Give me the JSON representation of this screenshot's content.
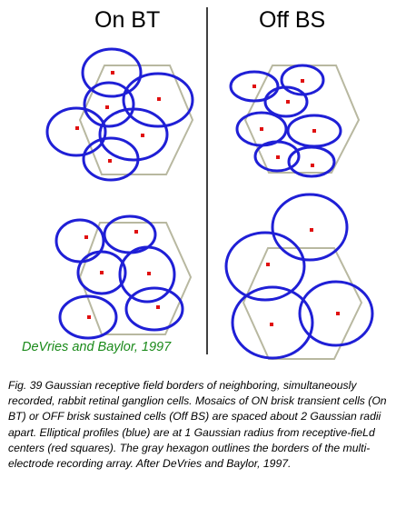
{
  "titles": {
    "left": "On BT",
    "right": "Off BS"
  },
  "credit": "DeVries and Baylor, 1997",
  "caption": "Fig. 39 Gaussian receptive field borders of neighboring, simultaneously recorded, rabbit retinal ganglion cells. Mosaics of ON brisk transient cells (On BT) or OFF brisk sustained cells (Off BS) are spaced about 2 Gaussian radii apart. Elliptical profiles (blue) are at 1 Gaussian radius from receptive-fieLd centers (red squares). The gray hexagon outlines the borders of the multi-electrode recording array. After DeVries and Baylor, 1997.",
  "colors": {
    "ellipse": "#1f1fd6",
    "center": "#e01010",
    "hexagon": "#b8b8a0",
    "credit": "#1a8a1a"
  }
}
